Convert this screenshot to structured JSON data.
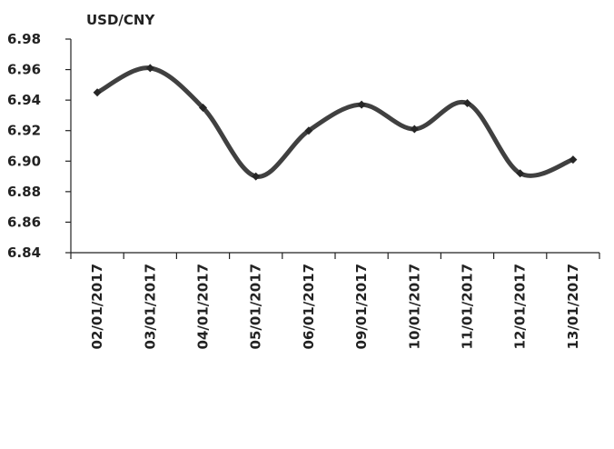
{
  "chart_data": {
    "type": "line",
    "title": "",
    "xlabel": "",
    "ylabel": "USD/CNY",
    "ylim": [
      6.84,
      6.98
    ],
    "yticks": [
      "6.84",
      "6.86",
      "6.88",
      "6.90",
      "6.92",
      "6.94",
      "6.96",
      "6.98"
    ],
    "categories": [
      "02/01/2017",
      "03/01/2017",
      "04/01/2017",
      "05/01/2017",
      "06/01/2017",
      "09/01/2017",
      "10/01/2017",
      "11/01/2017",
      "12/01/2017",
      "13/01/2017"
    ],
    "series": [
      {
        "values": [
          6.945,
          6.961,
          6.935,
          6.89,
          6.92,
          6.937,
          6.921,
          6.938,
          6.892,
          6.901
        ]
      }
    ],
    "grid": false,
    "legend": "none",
    "line_color": "#404040",
    "marker": "diamond"
  }
}
